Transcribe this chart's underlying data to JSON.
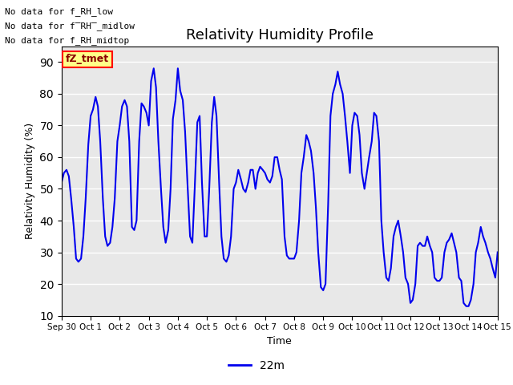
{
  "title": "Relativity Humidity Profile",
  "xlabel": "Time",
  "ylabel": "Relativity Humidity (%)",
  "ylim": [
    10,
    95
  ],
  "yticks": [
    10,
    20,
    30,
    40,
    50,
    60,
    70,
    80,
    90
  ],
  "line_color": "#0000EE",
  "line_width": 1.5,
  "bg_color": "#E8E8E8",
  "legend_label": "22m",
  "no_data_texts": [
    "No data for f_RH_low",
    "No data for f̅RH̅_midlow",
    "No data for f_RH_midtop"
  ],
  "fz_tmet_label": "fZ_tmet",
  "x_ticks_days": [
    0,
    1,
    2,
    3,
    4,
    5,
    6,
    7,
    8,
    9,
    10,
    11,
    12,
    13,
    14,
    15
  ],
  "x_tick_labels": [
    "Sep 30",
    "Oct 1",
    "Oct 2",
    "Oct 3",
    "Oct 4",
    "Oct 5",
    "Oct 6",
    "Oct 7",
    "Oct 8",
    "Oct 9",
    "Oct 10",
    "Oct 11",
    "Oct 12",
    "Oct 13",
    "Oct 14",
    "Oct 15"
  ],
  "x_days": [
    0.0,
    0.08,
    0.17,
    0.25,
    0.33,
    0.42,
    0.5,
    0.58,
    0.67,
    0.75,
    0.83,
    0.92,
    1.0,
    1.08,
    1.17,
    1.25,
    1.33,
    1.42,
    1.5,
    1.58,
    1.67,
    1.75,
    1.83,
    1.92,
    2.0,
    2.08,
    2.17,
    2.25,
    2.33,
    2.42,
    2.5,
    2.58,
    2.67,
    2.75,
    2.83,
    2.92,
    3.0,
    3.08,
    3.17,
    3.25,
    3.33,
    3.42,
    3.5,
    3.58,
    3.67,
    3.75,
    3.83,
    3.92,
    4.0,
    4.08,
    4.17,
    4.25,
    4.33,
    4.42,
    4.5,
    4.58,
    4.67,
    4.75,
    4.83,
    4.92,
    5.0,
    5.08,
    5.17,
    5.25,
    5.33,
    5.42,
    5.5,
    5.58,
    5.67,
    5.75,
    5.83,
    5.92,
    6.0,
    6.08,
    6.17,
    6.25,
    6.33,
    6.42,
    6.5,
    6.58,
    6.67,
    6.75,
    6.83,
    6.92,
    7.0,
    7.08,
    7.17,
    7.25,
    7.33,
    7.42,
    7.5,
    7.58,
    7.67,
    7.75,
    7.83,
    7.92,
    8.0,
    8.08,
    8.17,
    8.25,
    8.33,
    8.42,
    8.5,
    8.58,
    8.67,
    8.75,
    8.83,
    8.92,
    9.0,
    9.08,
    9.17,
    9.25,
    9.33,
    9.42,
    9.5,
    9.58,
    9.67,
    9.75,
    9.83,
    9.92,
    10.0,
    10.08,
    10.17,
    10.25,
    10.33,
    10.42,
    10.5,
    10.58,
    10.67,
    10.75,
    10.83,
    10.92,
    11.0,
    11.08,
    11.17,
    11.25,
    11.33,
    11.42,
    11.5,
    11.58,
    11.67,
    11.75,
    11.83,
    11.92,
    12.0,
    12.08,
    12.17,
    12.25,
    12.33,
    12.42,
    12.5,
    12.58,
    12.67,
    12.75,
    12.83,
    12.92,
    13.0,
    13.08,
    13.17,
    13.25,
    13.33,
    13.42,
    13.5,
    13.58,
    13.67,
    13.75,
    13.83,
    13.92,
    14.0,
    14.08,
    14.17,
    14.25,
    14.33,
    14.42,
    14.5,
    14.58,
    14.67,
    14.75,
    14.83,
    14.92,
    15.0
  ],
  "y_vals": [
    52,
    55,
    56,
    54,
    47,
    38,
    28,
    27,
    28,
    35,
    47,
    64,
    73,
    75,
    79,
    76,
    65,
    47,
    35,
    32,
    33,
    38,
    47,
    65,
    70,
    76,
    78,
    76,
    65,
    38,
    37,
    40,
    65,
    77,
    76,
    74,
    70,
    84,
    88,
    82,
    65,
    50,
    38,
    33,
    37,
    50,
    72,
    78,
    88,
    81,
    78,
    68,
    52,
    35,
    33,
    50,
    71,
    73,
    52,
    35,
    35,
    50,
    71,
    79,
    73,
    52,
    35,
    28,
    27,
    29,
    35,
    50,
    52,
    56,
    53,
    50,
    49,
    52,
    56,
    56,
    50,
    55,
    57,
    56,
    55,
    53,
    52,
    54,
    60,
    60,
    56,
    53,
    35,
    29,
    28,
    28,
    28,
    30,
    40,
    55,
    60,
    67,
    65,
    62,
    55,
    44,
    30,
    19,
    18,
    20,
    45,
    73,
    80,
    83,
    87,
    83,
    80,
    73,
    65,
    55,
    70,
    74,
    73,
    67,
    55,
    50,
    55,
    60,
    65,
    74,
    73,
    65,
    40,
    30,
    22,
    21,
    25,
    35,
    38,
    40,
    35,
    30,
    22,
    20,
    14,
    15,
    20,
    32,
    33,
    32,
    32,
    35,
    32,
    30,
    22,
    21,
    21,
    22,
    30,
    33,
    34,
    36,
    33,
    30,
    22,
    21,
    14,
    13,
    13,
    15,
    20,
    30,
    33,
    38,
    35,
    33,
    30,
    28,
    25,
    22,
    30
  ]
}
